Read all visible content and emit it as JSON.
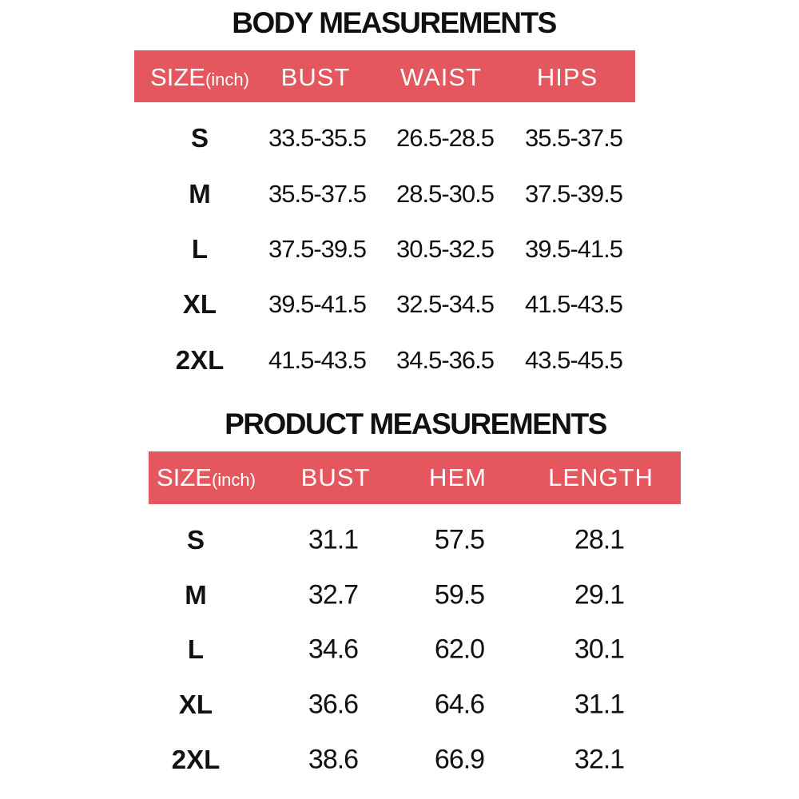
{
  "body": {
    "title": "BODY MEASUREMENTS",
    "size_label": "SIZE",
    "size_unit": "(inch)",
    "columns": [
      "BUST",
      "WAIST",
      "HIPS"
    ],
    "rows": [
      [
        "S",
        "33.5-35.5",
        "26.5-28.5",
        "35.5-37.5"
      ],
      [
        "M",
        "35.5-37.5",
        "28.5-30.5",
        "37.5-39.5"
      ],
      [
        "L",
        "37.5-39.5",
        "30.5-32.5",
        "39.5-41.5"
      ],
      [
        "XL",
        "39.5-41.5",
        "32.5-34.5",
        "41.5-43.5"
      ],
      [
        "2XL",
        "41.5-43.5",
        "34.5-36.5",
        "43.5-45.5"
      ]
    ]
  },
  "product": {
    "title": "PRODUCT MEASUREMENTS",
    "size_label": "SIZE",
    "size_unit": "(inch)",
    "columns": [
      "BUST",
      "HEM",
      "LENGTH"
    ],
    "rows": [
      [
        "S",
        "31.1",
        "57.5",
        "28.1"
      ],
      [
        "M",
        "32.7",
        "59.5",
        "29.1"
      ],
      [
        "L",
        "34.6",
        "62.0",
        "30.1"
      ],
      [
        "XL",
        "36.6",
        "64.6",
        "31.1"
      ],
      [
        "2XL",
        "38.6",
        "66.9",
        "32.1"
      ]
    ]
  }
}
